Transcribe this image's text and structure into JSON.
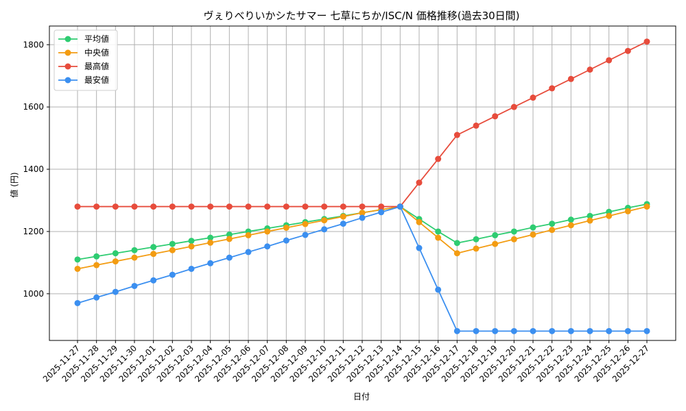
{
  "chart_data": {
    "type": "line",
    "title": "ヴぇりべりいかシたサマー 七草にちか/ISC/N 価格推移(過去30日間)",
    "xlabel": "日付",
    "ylabel": "値 (円)",
    "ylim": [
      850,
      1860
    ],
    "yticks": [
      1000,
      1200,
      1400,
      1600,
      1800
    ],
    "grid": true,
    "legend_position": "top-left",
    "categories": [
      "2025-11-27",
      "2025-11-28",
      "2025-11-29",
      "2025-11-30",
      "2025-12-01",
      "2025-12-02",
      "2025-12-03",
      "2025-12-04",
      "2025-12-05",
      "2025-12-06",
      "2025-12-07",
      "2025-12-08",
      "2025-12-09",
      "2025-12-10",
      "2025-12-11",
      "2025-12-12",
      "2025-12-13",
      "2025-12-14",
      "2025-12-15",
      "2025-12-16",
      "2025-12-17",
      "2025-12-18",
      "2025-12-19",
      "2025-12-20",
      "2025-12-21",
      "2025-12-22",
      "2025-12-23",
      "2025-12-24",
      "2025-12-25",
      "2025-12-26",
      "2025-12-27"
    ],
    "series": [
      {
        "name": "平均値",
        "color": "#2ecc71",
        "values": [
          1110,
          1120,
          1130,
          1140,
          1150,
          1160,
          1170,
          1180,
          1190,
          1200,
          1210,
          1220,
          1230,
          1240,
          1250,
          1260,
          1270,
          1280,
          1240,
          1200,
          1163,
          1175,
          1188,
          1200,
          1213,
          1225,
          1238,
          1250,
          1263,
          1276,
          1288
        ]
      },
      {
        "name": "中央値",
        "color": "#f39c12",
        "values": [
          1080,
          1092,
          1104,
          1116,
          1128,
          1140,
          1152,
          1164,
          1176,
          1188,
          1200,
          1212,
          1224,
          1236,
          1248,
          1260,
          1270,
          1280,
          1230,
          1180,
          1130,
          1145,
          1160,
          1175,
          1190,
          1205,
          1220,
          1235,
          1250,
          1265,
          1280
        ]
      },
      {
        "name": "最高値",
        "color": "#e74c3c",
        "values": [
          1280,
          1280,
          1280,
          1280,
          1280,
          1280,
          1280,
          1280,
          1280,
          1280,
          1280,
          1280,
          1280,
          1280,
          1280,
          1280,
          1280,
          1280,
          1357,
          1433,
          1510,
          1540,
          1570,
          1600,
          1630,
          1660,
          1690,
          1720,
          1750,
          1780,
          1810
        ]
      },
      {
        "name": "最安値",
        "color": "#3b8ff0",
        "values": [
          970,
          988,
          1006,
          1025,
          1043,
          1061,
          1080,
          1098,
          1116,
          1134,
          1152,
          1171,
          1189,
          1207,
          1225,
          1244,
          1262,
          1280,
          1147,
          1013,
          880,
          880,
          880,
          880,
          880,
          880,
          880,
          880,
          880,
          880,
          880
        ]
      }
    ]
  }
}
